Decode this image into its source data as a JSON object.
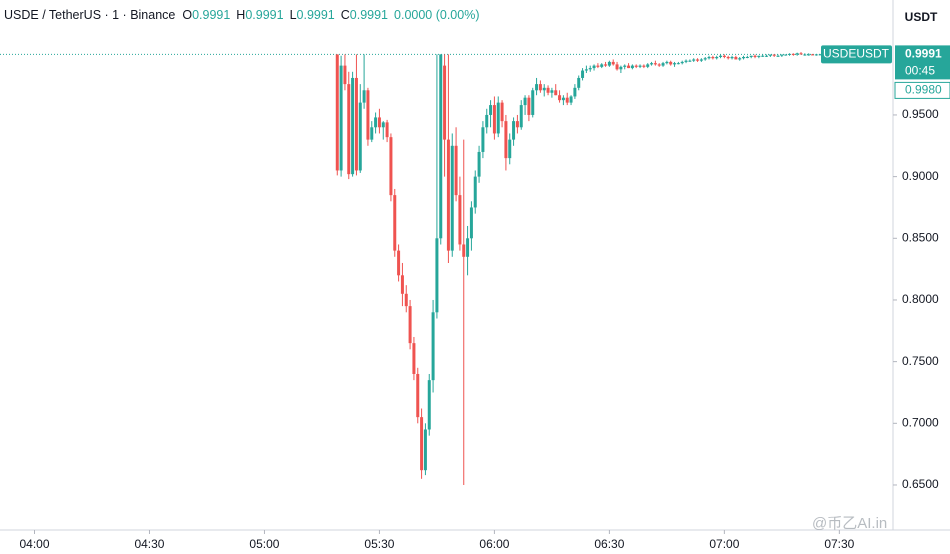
{
  "chart_data": {
    "type": "candlestick",
    "symbol": "USDE / TetherUS · 1 · Binance",
    "legend": [
      {
        "key": "O",
        "value": "0.9991"
      },
      {
        "key": "H",
        "value": "0.9991"
      },
      {
        "key": "L",
        "value": "0.9991"
      },
      {
        "key": "C",
        "value": "0.9991"
      }
    ],
    "change": "0.0000 (0.00%)",
    "y_unit": "USDT",
    "up_color": "#26a69a",
    "down_color": "#ef5350",
    "ylim": [
      0.6135,
      1.0432
    ],
    "yticks": [
      {
        "value": 0.95,
        "label": "0.9500"
      },
      {
        "value": 0.9,
        "label": "0.9000"
      },
      {
        "value": 0.85,
        "label": "0.8500"
      },
      {
        "value": 0.8,
        "label": "0.8000"
      },
      {
        "value": 0.75,
        "label": "0.7500"
      },
      {
        "value": 0.7,
        "label": "0.7000"
      },
      {
        "value": 0.65,
        "label": "0.6500"
      }
    ],
    "xlim": [
      "03:51",
      "07:44"
    ],
    "xticks": [
      "04:00",
      "04:30",
      "05:00",
      "05:30",
      "06:00",
      "06:30",
      "07:00",
      "07:30"
    ],
    "last_price": {
      "value": 0.9991,
      "label": "0.9991"
    },
    "symbol_tag": "USDEUSDT",
    "countdown": "00:45",
    "marker": {
      "value": 0.998,
      "label": "0.9980"
    },
    "watermark": "@币乙AI.in",
    "candles": [
      [
        "05:19",
        0.9991,
        0.9991,
        0.901,
        0.905
      ],
      [
        "05:20",
        0.905,
        0.998,
        0.9,
        0.99
      ],
      [
        "05:21",
        0.99,
        0.9991,
        0.97,
        0.975
      ],
      [
        "05:22",
        0.975,
        0.985,
        0.898,
        0.902
      ],
      [
        "05:23",
        0.902,
        0.985,
        0.9,
        0.98
      ],
      [
        "05:24",
        0.98,
        0.9991,
        0.901,
        0.905
      ],
      [
        "05:25",
        0.905,
        0.975,
        0.903,
        0.96
      ],
      [
        "05:26",
        0.96,
        0.9991,
        0.955,
        0.97
      ],
      [
        "05:27",
        0.97,
        0.972,
        0.925,
        0.93
      ],
      [
        "05:28",
        0.93,
        0.945,
        0.928,
        0.94
      ],
      [
        "05:29",
        0.94,
        0.952,
        0.935,
        0.948
      ],
      [
        "05:30",
        0.948,
        0.955,
        0.935,
        0.94
      ],
      [
        "05:31",
        0.94,
        0.945,
        0.93,
        0.944
      ],
      [
        "05:32",
        0.944,
        0.946,
        0.928,
        0.932
      ],
      [
        "05:33",
        0.932,
        0.935,
        0.88,
        0.885
      ],
      [
        "05:34",
        0.885,
        0.89,
        0.835,
        0.84
      ],
      [
        "05:35",
        0.84,
        0.845,
        0.815,
        0.82
      ],
      [
        "05:36",
        0.82,
        0.83,
        0.795,
        0.805
      ],
      [
        "05:37",
        0.805,
        0.812,
        0.79,
        0.795
      ],
      [
        "05:38",
        0.795,
        0.8,
        0.76,
        0.765
      ],
      [
        "05:39",
        0.765,
        0.77,
        0.735,
        0.74
      ],
      [
        "05:40",
        0.74,
        0.745,
        0.7,
        0.705
      ],
      [
        "05:41",
        0.705,
        0.712,
        0.655,
        0.662
      ],
      [
        "05:42",
        0.662,
        0.7,
        0.658,
        0.695
      ],
      [
        "05:43",
        0.695,
        0.74,
        0.69,
        0.735
      ],
      [
        "05:44",
        0.735,
        0.8,
        0.725,
        0.79
      ],
      [
        "05:45",
        0.79,
        0.9991,
        0.785,
        0.85
      ],
      [
        "05:46",
        0.85,
        0.9991,
        0.845,
        0.9991
      ],
      [
        "05:47",
        0.99,
        0.9991,
        0.9,
        0.93
      ],
      [
        "05:48",
        0.93,
        0.9991,
        0.83,
        0.84
      ],
      [
        "05:49",
        0.84,
        0.935,
        0.835,
        0.925
      ],
      [
        "05:50",
        0.925,
        0.94,
        0.88,
        0.885
      ],
      [
        "05:51",
        0.885,
        0.9,
        0.84,
        0.845
      ],
      [
        "05:52",
        0.845,
        0.93,
        0.65,
        0.835
      ],
      [
        "05:53",
        0.835,
        0.86,
        0.82,
        0.85
      ],
      [
        "05:54",
        0.85,
        0.88,
        0.84,
        0.875
      ],
      [
        "05:55",
        0.875,
        0.905,
        0.87,
        0.9
      ],
      [
        "05:56",
        0.9,
        0.925,
        0.895,
        0.92
      ],
      [
        "05:57",
        0.92,
        0.945,
        0.915,
        0.94
      ],
      [
        "05:58",
        0.94,
        0.955,
        0.935,
        0.95
      ],
      [
        "05:59",
        0.95,
        0.962,
        0.94,
        0.958
      ],
      [
        "06:00",
        0.958,
        0.965,
        0.93,
        0.935
      ],
      [
        "06:01",
        0.935,
        0.965,
        0.932,
        0.96
      ],
      [
        "06:02",
        0.96,
        0.962,
        0.94,
        0.945
      ],
      [
        "06:03",
        0.945,
        0.95,
        0.905,
        0.915
      ],
      [
        "06:04",
        0.915,
        0.935,
        0.91,
        0.93
      ],
      [
        "06:05",
        0.93,
        0.948,
        0.925,
        0.945
      ],
      [
        "06:06",
        0.945,
        0.95,
        0.935,
        0.94
      ],
      [
        "06:07",
        0.94,
        0.962,
        0.938,
        0.958
      ],
      [
        "06:08",
        0.958,
        0.966,
        0.95,
        0.964
      ],
      [
        "06:09",
        0.964,
        0.966,
        0.945,
        0.95
      ],
      [
        "06:10",
        0.95,
        0.972,
        0.948,
        0.97
      ],
      [
        "06:11",
        0.97,
        0.98,
        0.966,
        0.975
      ],
      [
        "06:12",
        0.975,
        0.978,
        0.968,
        0.97
      ],
      [
        "06:13",
        0.97,
        0.975,
        0.965,
        0.972
      ],
      [
        "06:14",
        0.972,
        0.974,
        0.966,
        0.968
      ],
      [
        "06:15",
        0.968,
        0.972,
        0.964,
        0.97
      ],
      [
        "06:16",
        0.97,
        0.975,
        0.966,
        0.966
      ],
      [
        "06:17",
        0.966,
        0.97,
        0.96,
        0.962
      ],
      [
        "06:18",
        0.962,
        0.966,
        0.958,
        0.964
      ],
      [
        "06:19",
        0.964,
        0.968,
        0.958,
        0.96
      ],
      [
        "06:20",
        0.96,
        0.966,
        0.958,
        0.965
      ],
      [
        "06:21",
        0.965,
        0.975,
        0.963,
        0.972
      ],
      [
        "06:22",
        0.972,
        0.982,
        0.97,
        0.98
      ],
      [
        "06:23",
        0.98,
        0.988,
        0.978,
        0.986
      ],
      [
        "06:24",
        0.986,
        0.99,
        0.984,
        0.987
      ],
      [
        "06:25",
        0.987,
        0.99,
        0.985,
        0.988
      ],
      [
        "06:26",
        0.988,
        0.991,
        0.986,
        0.99
      ],
      [
        "06:27",
        0.99,
        0.992,
        0.988,
        0.989
      ],
      [
        "06:28",
        0.989,
        0.992,
        0.988,
        0.991
      ],
      [
        "06:29",
        0.991,
        0.993,
        0.989,
        0.99
      ],
      [
        "06:30",
        0.99,
        0.994,
        0.989,
        0.993
      ],
      [
        "06:31",
        0.993,
        0.995,
        0.99,
        0.991
      ],
      [
        "06:32",
        0.991,
        0.993,
        0.986,
        0.987
      ],
      [
        "06:33",
        0.987,
        0.99,
        0.984,
        0.989
      ],
      [
        "06:34",
        0.989,
        0.991,
        0.987,
        0.99
      ],
      [
        "06:35",
        0.99,
        0.992,
        0.988,
        0.988
      ],
      [
        "06:36",
        0.988,
        0.991,
        0.987,
        0.99
      ],
      [
        "06:37",
        0.99,
        0.991,
        0.988,
        0.989
      ],
      [
        "06:38",
        0.989,
        0.991,
        0.988,
        0.99
      ],
      [
        "06:39",
        0.99,
        0.991,
        0.988,
        0.989
      ],
      [
        "06:40",
        0.989,
        0.992,
        0.988,
        0.991
      ],
      [
        "06:41",
        0.991,
        0.993,
        0.99,
        0.992
      ],
      [
        "06:42",
        0.992,
        0.994,
        0.99,
        0.991
      ],
      [
        "06:43",
        0.991,
        0.992,
        0.989,
        0.99
      ],
      [
        "06:44",
        0.99,
        0.993,
        0.989,
        0.992
      ],
      [
        "06:45",
        0.992,
        0.994,
        0.991,
        0.993
      ],
      [
        "06:46",
        0.993,
        0.994,
        0.99,
        0.991
      ],
      [
        "06:47",
        0.991,
        0.993,
        0.989,
        0.992
      ],
      [
        "06:48",
        0.992,
        0.993,
        0.991,
        0.992
      ],
      [
        "06:49",
        0.992,
        0.994,
        0.991,
        0.993
      ],
      [
        "06:50",
        0.993,
        0.995,
        0.992,
        0.994
      ],
      [
        "06:51",
        0.994,
        0.995,
        0.993,
        0.994
      ],
      [
        "06:52",
        0.994,
        0.996,
        0.993,
        0.995
      ],
      [
        "06:53",
        0.995,
        0.996,
        0.993,
        0.994
      ],
      [
        "06:54",
        0.994,
        0.996,
        0.993,
        0.995
      ],
      [
        "06:55",
        0.995,
        0.997,
        0.994,
        0.996
      ],
      [
        "06:56",
        0.996,
        0.998,
        0.995,
        0.997
      ],
      [
        "06:57",
        0.997,
        0.998,
        0.995,
        0.996
      ],
      [
        "06:58",
        0.996,
        0.998,
        0.995,
        0.997
      ],
      [
        "06:59",
        0.997,
        0.9991,
        0.996,
        0.998
      ],
      [
        "07:00",
        0.998,
        0.9991,
        0.996,
        0.997
      ],
      [
        "07:01",
        0.997,
        0.998,
        0.995,
        0.996
      ],
      [
        "07:02",
        0.996,
        0.998,
        0.995,
        0.997
      ],
      [
        "07:03",
        0.997,
        0.998,
        0.995,
        0.995
      ],
      [
        "07:04",
        0.995,
        0.997,
        0.994,
        0.996
      ],
      [
        "07:05",
        0.996,
        0.998,
        0.995,
        0.997
      ],
      [
        "07:06",
        0.997,
        0.998,
        0.996,
        0.997
      ],
      [
        "07:07",
        0.997,
        0.998,
        0.996,
        0.998
      ],
      [
        "07:08",
        0.998,
        0.999,
        0.996,
        0.997
      ],
      [
        "07:09",
        0.997,
        0.998,
        0.996,
        0.998
      ],
      [
        "07:10",
        0.998,
        0.999,
        0.997,
        0.998
      ],
      [
        "07:11",
        0.998,
        0.999,
        0.997,
        0.998
      ],
      [
        "07:12",
        0.998,
        0.999,
        0.997,
        0.999
      ],
      [
        "07:13",
        0.999,
        0.9991,
        0.997,
        0.998
      ],
      [
        "07:14",
        0.998,
        0.999,
        0.997,
        0.998
      ],
      [
        "07:15",
        0.998,
        0.999,
        0.997,
        0.999
      ],
      [
        "07:16",
        0.999,
        0.9991,
        0.998,
        0.999
      ],
      [
        "07:17",
        0.999,
        1.0,
        0.998,
        0.9995
      ],
      [
        "07:18",
        0.9995,
        1.0,
        0.998,
        0.999
      ],
      [
        "07:19",
        0.999,
        1.0005,
        0.998,
        1.0
      ],
      [
        "07:20",
        1.0,
        1.001,
        0.999,
        0.999
      ],
      [
        "07:21",
        0.999,
        1.0,
        0.998,
        0.999
      ],
      [
        "07:22",
        0.999,
        1.0,
        0.998,
        0.9991
      ],
      [
        "07:23",
        0.9991,
        0.9995,
        0.9985,
        0.999
      ],
      [
        "07:24",
        0.999,
        0.9995,
        0.998,
        0.9991
      ],
      [
        "07:25",
        0.9991,
        0.9995,
        0.9988,
        0.9991
      ],
      [
        "07:26",
        0.9991,
        0.9994,
        0.9987,
        0.9989
      ],
      [
        "07:27",
        0.9989,
        0.9993,
        0.9986,
        0.9991
      ],
      [
        "07:28",
        0.9991,
        0.9994,
        0.9988,
        0.999
      ],
      [
        "07:29",
        0.999,
        0.9993,
        0.9987,
        0.9991
      ],
      [
        "07:30",
        0.9991,
        0.9994,
        0.9989,
        0.9991
      ],
      [
        "07:31",
        0.9991,
        0.9993,
        0.9988,
        0.999
      ],
      [
        "07:32",
        0.999,
        0.9993,
        0.9989,
        0.9991
      ]
    ]
  }
}
